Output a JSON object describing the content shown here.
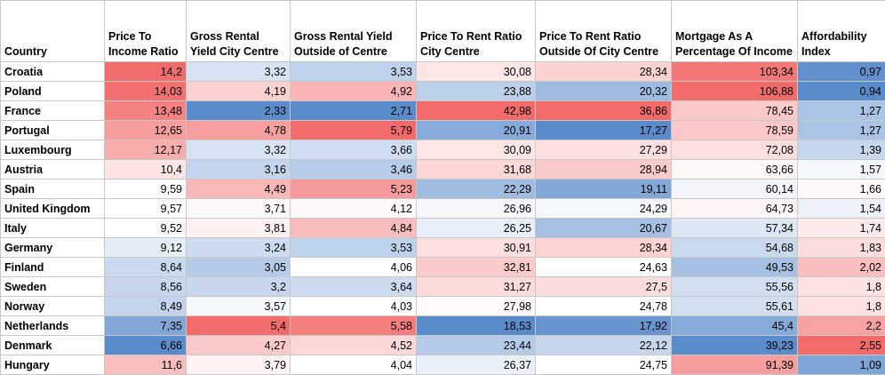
{
  "headers": [
    "Country",
    "Price To Income Ratio",
    "Gross Rental Yield City Centre",
    "Gross Rental Yield Outside of Centre",
    "Price To Rent Ratio City Centre",
    "Price To Rent Ratio Outside Of City Centre",
    "Mortgage As A Percentage Of Income",
    "Affordability Index"
  ],
  "rows": [
    {
      "country": "Croatia",
      "values": [
        "14,2",
        "3,32",
        "3,53",
        "30,08",
        "28,34",
        "103,34",
        "0,97"
      ]
    },
    {
      "country": "Poland",
      "values": [
        "14,03",
        "4,19",
        "4,92",
        "23,88",
        "20,32",
        "106,88",
        "0,94"
      ]
    },
    {
      "country": "France",
      "values": [
        "13,48",
        "2,33",
        "2,71",
        "42,98",
        "36,86",
        "78,45",
        "1,27"
      ]
    },
    {
      "country": "Portugal",
      "values": [
        "12,65",
        "4,78",
        "5,79",
        "20,91",
        "17,27",
        "78,59",
        "1,27"
      ]
    },
    {
      "country": "Luxembourg",
      "values": [
        "12,17",
        "3,32",
        "3,66",
        "30,09",
        "27,29",
        "72,08",
        "1,39"
      ]
    },
    {
      "country": "Austria",
      "values": [
        "10,4",
        "3,16",
        "3,46",
        "31,68",
        "28,94",
        "63,66",
        "1,57"
      ]
    },
    {
      "country": "Spain",
      "values": [
        "9,59",
        "4,49",
        "5,23",
        "22,29",
        "19,11",
        "60,14",
        "1,66"
      ]
    },
    {
      "country": "United Kingdom",
      "values": [
        "9,57",
        "3,71",
        "4,12",
        "26,96",
        "24,29",
        "64,73",
        "1,54"
      ]
    },
    {
      "country": "Italy",
      "values": [
        "9,52",
        "3,81",
        "4,84",
        "26,25",
        "20,67",
        "57,34",
        "1,74"
      ]
    },
    {
      "country": "Germany",
      "values": [
        "9,12",
        "3,24",
        "3,53",
        "30,91",
        "28,34",
        "54,68",
        "1,83"
      ]
    },
    {
      "country": "Finland",
      "values": [
        "8,64",
        "3,05",
        "4,06",
        "32,81",
        "24,63",
        "49,53",
        "2,02"
      ]
    },
    {
      "country": "Sweden",
      "values": [
        "8,56",
        "3,2",
        "3,64",
        "31,27",
        "27,5",
        "55,56",
        "1,8"
      ]
    },
    {
      "country": "Norway",
      "values": [
        "8,49",
        "3,57",
        "4,03",
        "27,98",
        "24,78",
        "55,61",
        "1,8"
      ]
    },
    {
      "country": "Netherlands",
      "values": [
        "7,35",
        "5,4",
        "5,58",
        "18,53",
        "17,92",
        "45,4",
        "2,2"
      ]
    },
    {
      "country": "Denmark",
      "values": [
        "6,66",
        "4,27",
        "4,52",
        "23,44",
        "22,12",
        "39,23",
        "2,55"
      ]
    },
    {
      "country": "Hungary",
      "values": [
        "11,6",
        "3,79",
        "4,04",
        "26,37",
        "24,75",
        "91,39",
        "1,09"
      ]
    }
  ],
  "colors": {
    "high": "#f26b6b",
    "mid": "#ffffff",
    "low": "#5a8bcb"
  }
}
